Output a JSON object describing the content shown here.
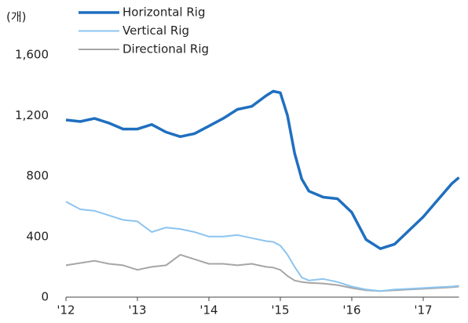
{
  "chart_data": {
    "type": "line",
    "y_label": "(개)",
    "x": [
      2012.0,
      2012.2,
      2012.4,
      2012.6,
      2012.8,
      2013.0,
      2013.2,
      2013.4,
      2013.6,
      2013.8,
      2014.0,
      2014.2,
      2014.4,
      2014.6,
      2014.8,
      2014.9,
      2015.0,
      2015.1,
      2015.2,
      2015.3,
      2015.4,
      2015.6,
      2015.8,
      2016.0,
      2016.2,
      2016.4,
      2016.6,
      2016.8,
      2017.0,
      2017.2,
      2017.4,
      2017.5
    ],
    "series": [
      {
        "name": "Horizontal Rig",
        "color": "#1f6fbf",
        "width": 3.5,
        "values": [
          1170,
          1160,
          1180,
          1150,
          1110,
          1110,
          1140,
          1090,
          1060,
          1080,
          1130,
          1180,
          1240,
          1260,
          1330,
          1360,
          1350,
          1200,
          950,
          780,
          700,
          660,
          650,
          560,
          380,
          320,
          350,
          440,
          530,
          640,
          750,
          790
        ]
      },
      {
        "name": "Vertical Rig",
        "color": "#8cc4f0",
        "width": 2,
        "values": [
          630,
          580,
          570,
          540,
          510,
          500,
          430,
          460,
          450,
          430,
          400,
          400,
          410,
          390,
          370,
          365,
          340,
          280,
          200,
          130,
          110,
          120,
          100,
          70,
          50,
          40,
          50,
          55,
          60,
          65,
          70,
          75
        ]
      },
      {
        "name": "Directional Rig",
        "color": "#a6a6a6",
        "width": 2,
        "values": [
          210,
          225,
          240,
          220,
          210,
          180,
          200,
          210,
          280,
          250,
          220,
          220,
          210,
          220,
          200,
          195,
          180,
          140,
          110,
          100,
          95,
          90,
          80,
          60,
          45,
          40,
          45,
          50,
          55,
          60,
          65,
          70
        ]
      }
    ],
    "xlim": [
      2012,
      2017.5
    ],
    "xticks": [
      {
        "value": 2012,
        "label": "'12"
      },
      {
        "value": 2013,
        "label": "'13"
      },
      {
        "value": 2014,
        "label": "'14"
      },
      {
        "value": 2015,
        "label": "'15"
      },
      {
        "value": 2016,
        "label": "'16"
      },
      {
        "value": 2017,
        "label": "'17"
      }
    ],
    "ylim": [
      0,
      1600
    ],
    "yticks": [
      0,
      400,
      800,
      {
        "value": 1200,
        "label": "1,200"
      },
      {
        "value": 1600,
        "label": "1,600"
      }
    ],
    "grid": false
  }
}
